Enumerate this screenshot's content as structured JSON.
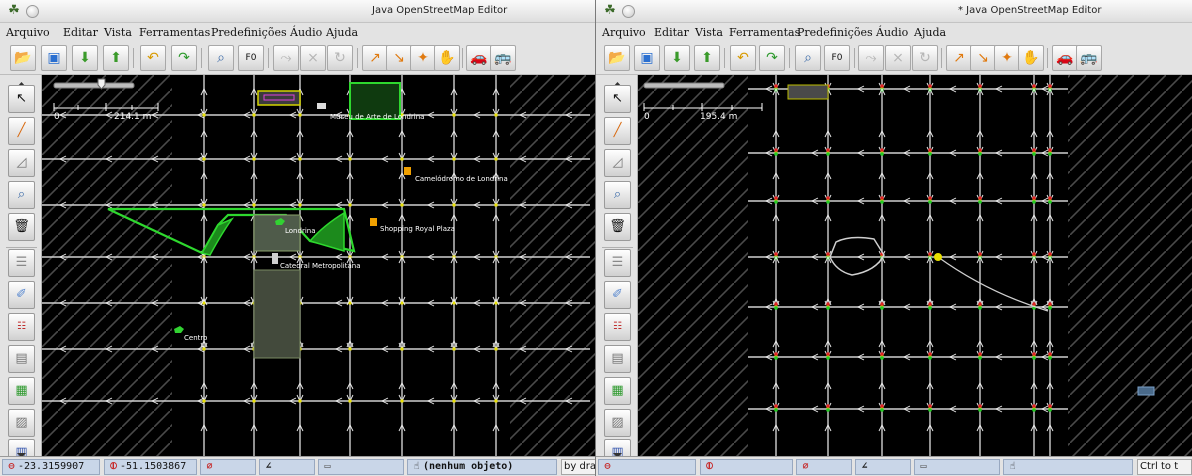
{
  "left": {
    "title": "Java OpenStreetMap Editor",
    "menu": [
      "Arquivo",
      "Editar",
      "Vista",
      "Ferramentas",
      "Predefinições",
      "Áudio",
      "Ajuda"
    ],
    "scale": {
      "zero": "0",
      "value": "214.1 m"
    },
    "labels": {
      "museu": "Museu de Arte de Londrina",
      "camelodromo": "Camelódromo de Londrina",
      "shopping": "Shopping Royal Plaza",
      "londrina": "Londrina",
      "catedral": "Catedral Metropolitana",
      "centro": "Centro"
    },
    "status": {
      "lat": "-23.3159907",
      "lon": "-51.1503867",
      "selection": "(nenhum objeto)",
      "help": "by dra"
    }
  },
  "right": {
    "title": "* Java OpenStreetMap Editor",
    "menu": [
      "Arquivo",
      "Editar",
      "Vista",
      "Ferramentas",
      "Predefinições",
      "Áudio",
      "Ajuda"
    ],
    "scale": {
      "zero": "0",
      "value": "195.4 m"
    },
    "status": {
      "lat": "",
      "lon": "",
      "selection": "",
      "help": "Ctrl to t"
    }
  },
  "toolbar_icons": [
    "open-file-icon",
    "save-icon",
    "download-icon",
    "upload-icon",
    "undo-icon",
    "redo-icon",
    "preferences-icon",
    "zoom-icon",
    "simplify-icon",
    "combine-icon",
    "split-icon",
    "refresh-icon",
    "draw-area-icon",
    "align-icon",
    "orthogonal-icon",
    "hand-icon",
    "car-icon",
    "bus-icon"
  ],
  "left_tools": [
    "select-icon",
    "draw-icon",
    "measure-icon",
    "zoom-map-icon",
    "delete-icon",
    "layers-icon",
    "tag-icon",
    "relation-icon",
    "history-icon",
    "toggle-icon",
    "properties-icon",
    "imagery-icon"
  ],
  "colors": {
    "map_bg": "#000000",
    "outside_hatch": "#4a4a4a",
    "way": "#d0d0d0",
    "selected_way": "#2ed82e",
    "node": "#e8e000",
    "status_field": "#c9d6e8"
  }
}
